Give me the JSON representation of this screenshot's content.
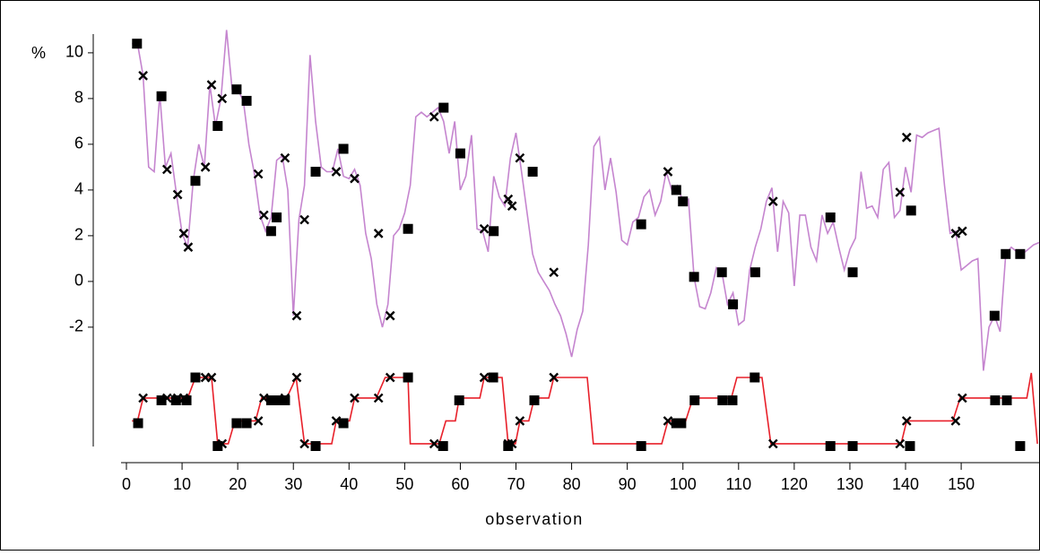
{
  "chart_data": {
    "type": "line",
    "y_unit_label": "%",
    "xlabel": "observation",
    "xlim": [
      0,
      164
    ],
    "ylim": [
      -7.2,
      10.8
    ],
    "xticks": [
      0,
      10,
      20,
      30,
      40,
      50,
      60,
      70,
      80,
      90,
      100,
      110,
      120,
      130,
      140,
      150
    ],
    "yticks": [
      -2,
      0,
      2,
      4,
      6,
      8,
      10
    ],
    "grid": false,
    "series": [
      {
        "kind": "line",
        "color": "#c585cf",
        "x": [
          1,
          2,
          3,
          4,
          5,
          6,
          7,
          8,
          9,
          10,
          11,
          12,
          13,
          14,
          15,
          16,
          17,
          18,
          19,
          20,
          21,
          22,
          23,
          24,
          25,
          26,
          27,
          28,
          29,
          30,
          31,
          32,
          33,
          34,
          35,
          36,
          37,
          38,
          39,
          40,
          41,
          42,
          43,
          44,
          45,
          46,
          47,
          48,
          49,
          50,
          51,
          52,
          53,
          54,
          55,
          56,
          57,
          58,
          59,
          60,
          61,
          62,
          63,
          64,
          65,
          66,
          67,
          68,
          69,
          70,
          71,
          72,
          73,
          74,
          75,
          76,
          77,
          78,
          79,
          80,
          81,
          82,
          83,
          84,
          85,
          86,
          87,
          88,
          89,
          90,
          91,
          92,
          93,
          94,
          95,
          96,
          97,
          98,
          99,
          100,
          101,
          102,
          103,
          104,
          105,
          106,
          107,
          108,
          109,
          110,
          111,
          112,
          113,
          114,
          115,
          116,
          117,
          118,
          119,
          120,
          121,
          122,
          123,
          124,
          125,
          126,
          127,
          128,
          129,
          130,
          131,
          132,
          133,
          134,
          135,
          136,
          137,
          138,
          139,
          140,
          141,
          142,
          143,
          144,
          145,
          146,
          147,
          148,
          149,
          150,
          151,
          152,
          153,
          154,
          155,
          156,
          157,
          158,
          159,
          160,
          161,
          162,
          163,
          164
        ],
        "values": [
          10.4,
          10.4,
          9.0,
          5.0,
          4.8,
          8.2,
          5.0,
          5.6,
          3.8,
          2.1,
          1.5,
          4.4,
          6.0,
          5.0,
          8.6,
          6.8,
          8.0,
          11.0,
          8.4,
          8.4,
          7.9,
          6.0,
          4.7,
          2.9,
          2.2,
          2.8,
          5.3,
          5.5,
          4.0,
          -1.5,
          2.7,
          4.2,
          9.9,
          7.0,
          5.0,
          4.8,
          4.8,
          5.8,
          4.6,
          4.5,
          4.9,
          4.2,
          2.1,
          1.0,
          -1.0,
          -2.0,
          -1.0,
          2.0,
          2.3,
          3.0,
          4.2,
          7.2,
          7.4,
          7.2,
          7.4,
          7.6,
          7.0,
          5.6,
          7.0,
          4.0,
          4.6,
          6.4,
          2.3,
          2.2,
          1.3,
          4.6,
          3.7,
          3.3,
          5.4,
          6.5,
          4.8,
          3.0,
          1.2,
          0.4,
          0.0,
          -0.4,
          -1.0,
          -1.5,
          -2.3,
          -3.3,
          -2.1,
          -1.3,
          1.6,
          5.9,
          6.3,
          4.0,
          5.4,
          3.9,
          1.8,
          1.6,
          2.6,
          2.8,
          3.7,
          4.0,
          2.9,
          3.5,
          4.8,
          4.0,
          4.2,
          3.5,
          3.6,
          0.2,
          -1.1,
          -1.2,
          -0.5,
          0.6,
          0.4,
          -1.0,
          -0.5,
          -1.9,
          -1.7,
          0.5,
          1.5,
          2.3,
          3.5,
          4.1,
          1.3,
          3.5,
          3.0,
          -0.2,
          2.9,
          2.9,
          1.5,
          0.9,
          2.9,
          2.1,
          2.6,
          1.5,
          0.5,
          1.4,
          1.9,
          4.8,
          3.2,
          3.3,
          2.8,
          4.9,
          5.2,
          2.8,
          3.1,
          5.0,
          3.9,
          6.4,
          6.3,
          6.5,
          6.6,
          6.7,
          4.2,
          2.1,
          2.2,
          0.5,
          0.7,
          0.9,
          1.0,
          -3.9,
          -2.0,
          -1.5,
          -2.2,
          1.2,
          1.5,
          1.3,
          1.2,
          1.4,
          1.6,
          1.7
        ]
      },
      {
        "kind": "line",
        "color": "#e8202a",
        "x": [
          1,
          2,
          3,
          11,
          12.4,
          15.3,
          16.4,
          18.3,
          19.5,
          23.2,
          24.3,
          28.8,
          30.5,
          32,
          36.9,
          37.7,
          40.1,
          41,
          44.9,
          46.5,
          50.6,
          51,
          56.2,
          57.4,
          59.1,
          59.8,
          63.5,
          64.3,
          67.5,
          68.6,
          69.9,
          70.7,
          72.3,
          73.3,
          75.9,
          76.8,
          82.8,
          83.9,
          96.2,
          97.3,
          100.5,
          101.8,
          108.7,
          109.7,
          114.2,
          115.8,
          139.2,
          140.2,
          148.5,
          149.8,
          161.8,
          162.6,
          163.7
        ],
        "values": [
          -6.1,
          -6.1,
          -5.1,
          -5.1,
          -4.2,
          -4.2,
          -7.1,
          -7.1,
          -6.1,
          -6.1,
          -5.1,
          -5.1,
          -4.2,
          -7.1,
          -7.1,
          -6.1,
          -6.1,
          -5.1,
          -5.1,
          -4.2,
          -4.2,
          -7.1,
          -7.1,
          -6.1,
          -6.1,
          -5.1,
          -5.1,
          -4.2,
          -4.2,
          -7.1,
          -7.1,
          -6.1,
          -6.1,
          -5.1,
          -5.1,
          -4.2,
          -4.2,
          -7.1,
          -7.1,
          -6.1,
          -6.1,
          -5.1,
          -5.1,
          -4.2,
          -4.2,
          -7.1,
          -7.1,
          -6.1,
          -6.1,
          -5.1,
          -5.1,
          -4.0,
          -7.1
        ]
      },
      {
        "kind": "square",
        "color": "#000000",
        "x": [
          1.9,
          6.3,
          12.4,
          16.4,
          19.8,
          21.6,
          26,
          27,
          34,
          39,
          50.6,
          57,
          60,
          66,
          73,
          92.5,
          98.8,
          100,
          102,
          107,
          109,
          113,
          126.5,
          130.5,
          141,
          156,
          158,
          160.6,
          2.1,
          6.3,
          8.9,
          10.8,
          12.4,
          16.4,
          19.8,
          21.6,
          26,
          27,
          28.5,
          34,
          39,
          50.6,
          56.9,
          59.8,
          65.9,
          68.6,
          73.3,
          92.5,
          98.8,
          99.7,
          102.1,
          107.1,
          108.9,
          112.9,
          126.5,
          130.5,
          140.8,
          156.1,
          158.2,
          160.6
        ],
        "values": [
          10.4,
          8.1,
          4.4,
          6.8,
          8.4,
          7.9,
          2.2,
          2.8,
          4.8,
          5.8,
          2.3,
          7.6,
          5.6,
          2.2,
          4.8,
          2.5,
          4.0,
          3.5,
          0.2,
          0.4,
          -1.0,
          0.4,
          2.8,
          0.4,
          3.1,
          -1.5,
          1.2,
          1.2,
          -6.2,
          -5.2,
          -5.2,
          -5.2,
          -4.2,
          -7.2,
          -6.2,
          -6.2,
          -5.2,
          -5.2,
          -5.2,
          -7.2,
          -6.2,
          -4.2,
          -7.2,
          -5.2,
          -4.2,
          -7.2,
          -5.2,
          -7.2,
          -6.2,
          -6.2,
          -5.2,
          -5.2,
          -5.2,
          -4.2,
          -7.2,
          -7.2,
          -7.2,
          -5.2,
          -5.2,
          -7.2
        ]
      },
      {
        "kind": "cross",
        "color": "#000000",
        "x": [
          3,
          7.3,
          9.2,
          10.3,
          11.1,
          14.2,
          15.3,
          17.2,
          23.7,
          24.7,
          28.5,
          30.6,
          32,
          37.7,
          41,
          45.3,
          47.4,
          55.3,
          64.3,
          68.6,
          69.3,
          70.7,
          76.8,
          97.3,
          116.2,
          140.2,
          139,
          149,
          150.2,
          3,
          7.3,
          9.2,
          10.3,
          14.2,
          15.3,
          17.2,
          23.7,
          24.7,
          28.5,
          30.6,
          32,
          37.7,
          41,
          45.3,
          47.4,
          55.3,
          64.3,
          68.6,
          69.3,
          70.7,
          76.8,
          97.3,
          116.2,
          140.2,
          139,
          149,
          150.2
        ],
        "values": [
          9.0,
          4.9,
          3.8,
          2.1,
          1.5,
          5.0,
          8.6,
          8.0,
          4.7,
          2.9,
          5.4,
          -1.5,
          2.7,
          4.8,
          4.5,
          2.1,
          -1.5,
          7.2,
          2.3,
          3.6,
          3.3,
          5.4,
          0.4,
          4.8,
          3.5,
          6.3,
          3.9,
          2.1,
          2.2,
          -5.1,
          -5.1,
          -5.1,
          -5.1,
          -4.2,
          -4.2,
          -7.1,
          -6.1,
          -5.1,
          -5.1,
          -4.2,
          -7.1,
          -6.1,
          -5.1,
          -5.1,
          -4.2,
          -7.1,
          -4.2,
          -7.1,
          -7.1,
          -6.1,
          -4.2,
          -6.1,
          -7.1,
          -6.1,
          -7.1,
          -6.1,
          -5.1
        ]
      }
    ]
  }
}
